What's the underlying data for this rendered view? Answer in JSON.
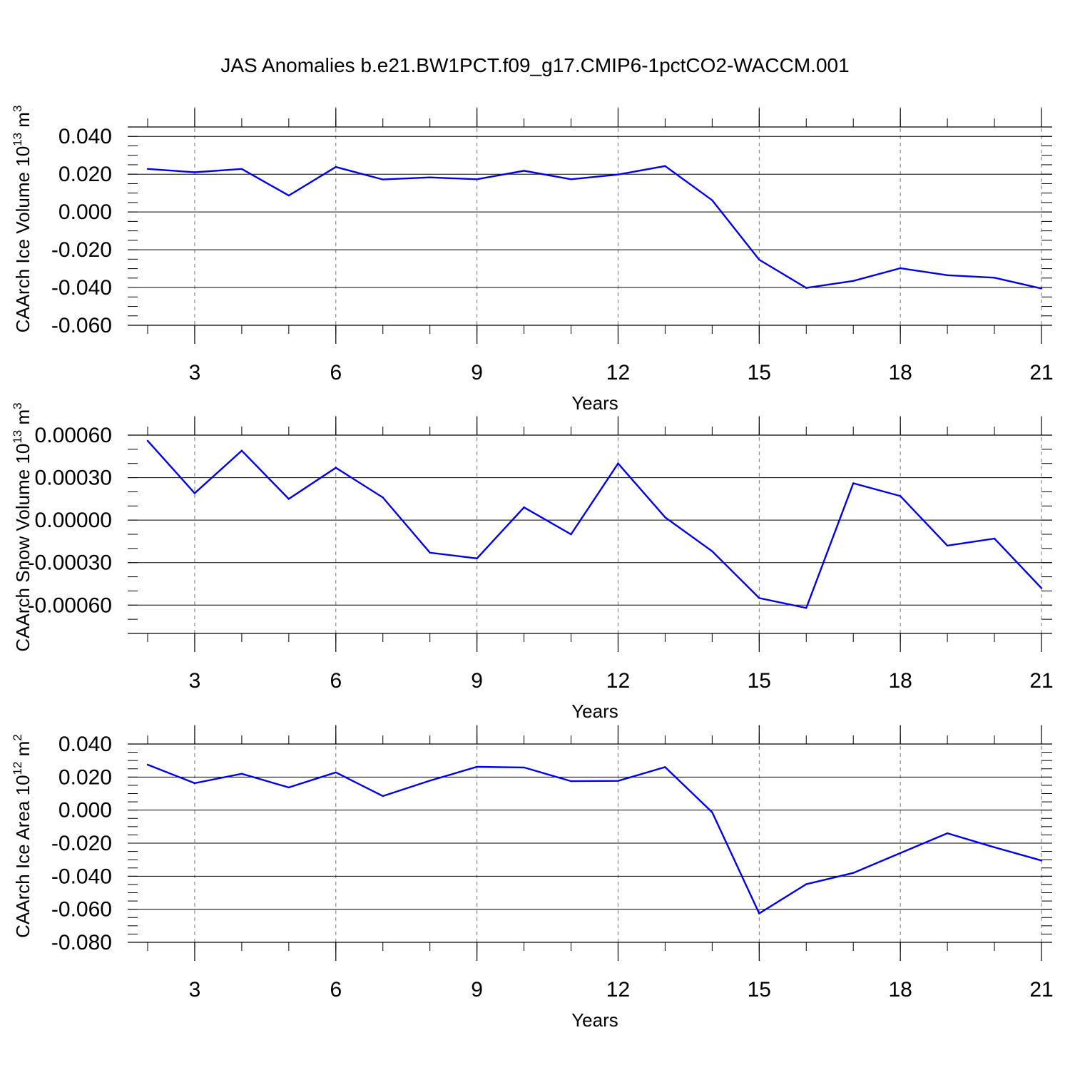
{
  "title": "JAS Anomalies b.e21.BW1PCT.f09_g17.CMIP6-1pctCO2-WACCM.001",
  "line_color": "#0000ee",
  "chart_data": [
    {
      "type": "line",
      "name": "ice-volume",
      "ylabel": "CAArch Ice Volume 10",
      "ylabel_exp": "13",
      "ylabel_unit": " m",
      "ylabel_unit_exp": "3",
      "xlabel": "Years",
      "xlim": [
        2,
        21
      ],
      "ylim": [
        -0.06,
        0.045
      ],
      "x_ticks": [
        3,
        6,
        9,
        12,
        15,
        18,
        21
      ],
      "x_tick_labels": [
        "3",
        "6",
        "9",
        "12",
        "15",
        "18",
        "21"
      ],
      "y_ticks": [
        0.04,
        0.02,
        0.0,
        -0.02,
        -0.04,
        -0.06
      ],
      "y_tick_labels": [
        "0.040",
        "0.020",
        "0.000",
        "-0.020",
        "-0.040",
        "-0.060"
      ],
      "y_minor_step": 0.005,
      "x": [
        2,
        3,
        4,
        5,
        6,
        7,
        8,
        9,
        10,
        11,
        12,
        13,
        14,
        15,
        16,
        17,
        18,
        19,
        20,
        21
      ],
      "values": [
        0.0228,
        0.021,
        0.0228,
        0.0087,
        0.0238,
        0.0172,
        0.0183,
        0.0173,
        0.0218,
        0.0173,
        0.0198,
        0.0243,
        0.0062,
        -0.0253,
        -0.0402,
        -0.0365,
        -0.0298,
        -0.0335,
        -0.0348,
        -0.0405
      ]
    },
    {
      "type": "line",
      "name": "snow-volume",
      "ylabel": "CAArch Snow Volume 10",
      "ylabel_exp": "13",
      "ylabel_unit": " m",
      "ylabel_unit_exp": "3",
      "xlabel": "Years",
      "xlim": [
        2,
        21
      ],
      "ylim": [
        -0.0008,
        0.0006
      ],
      "x_ticks": [
        3,
        6,
        9,
        12,
        15,
        18,
        21
      ],
      "x_tick_labels": [
        "3",
        "6",
        "9",
        "12",
        "15",
        "18",
        "21"
      ],
      "y_ticks": [
        0.0006,
        0.0003,
        0.0,
        -0.0003,
        -0.0006
      ],
      "y_tick_labels": [
        "0.00060",
        "0.00030",
        "0.00000",
        "-0.00030",
        "-0.00060"
      ],
      "y_minor_step": 0.0001,
      "x": [
        2,
        3,
        4,
        5,
        6,
        7,
        8,
        9,
        10,
        11,
        12,
        13,
        14,
        15,
        16,
        17,
        18,
        19,
        20,
        21
      ],
      "values": [
        0.00056,
        0.00019,
        0.00049,
        0.00015,
        0.00037,
        0.00016,
        -0.00023,
        -0.00027,
        9e-05,
        -0.0001,
        0.0004,
        2e-05,
        -0.00022,
        -0.00055,
        -0.00062,
        0.00026,
        0.00017,
        -0.00018,
        -0.00013,
        -0.00048
      ]
    },
    {
      "type": "line",
      "name": "ice-area",
      "ylabel": "CAArch Ice Area 10",
      "ylabel_exp": "12",
      "ylabel_unit": " m",
      "ylabel_unit_exp": "2",
      "xlabel": "Years",
      "xlim": [
        2,
        21
      ],
      "ylim": [
        -0.08,
        0.04
      ],
      "x_ticks": [
        3,
        6,
        9,
        12,
        15,
        18,
        21
      ],
      "x_tick_labels": [
        "3",
        "6",
        "9",
        "12",
        "15",
        "18",
        "21"
      ],
      "y_ticks": [
        0.04,
        0.02,
        0.0,
        -0.02,
        -0.04,
        -0.06,
        -0.08
      ],
      "y_tick_labels": [
        "0.040",
        "0.020",
        "0.000",
        "-0.020",
        "-0.040",
        "-0.060",
        "-0.080"
      ],
      "y_minor_step": 0.005,
      "x": [
        2,
        3,
        4,
        5,
        6,
        7,
        8,
        9,
        10,
        11,
        12,
        13,
        14,
        15,
        16,
        17,
        18,
        19,
        20,
        21
      ],
      "values": [
        0.0275,
        0.0163,
        0.022,
        0.0137,
        0.0228,
        0.0085,
        0.0178,
        0.0262,
        0.0258,
        0.0175,
        0.0177,
        0.026,
        -0.0013,
        -0.0625,
        -0.0448,
        -0.038,
        -0.026,
        -0.014,
        -0.0225,
        -0.0305
      ]
    }
  ]
}
